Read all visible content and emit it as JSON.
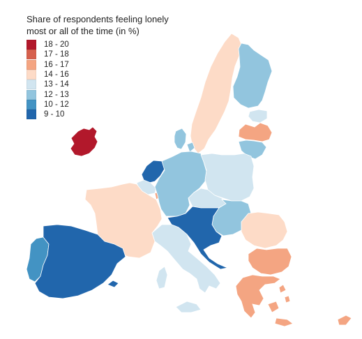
{
  "legend": {
    "title_line1": "Share of respondents feeling lonely",
    "title_line2": "most or all of the time (in %)",
    "items": [
      {
        "label": "18 - 20",
        "color": "#b2182b"
      },
      {
        "label": "17 - 18",
        "color": "#d6604d"
      },
      {
        "label": "16 - 17",
        "color": "#f4a582"
      },
      {
        "label": "14 - 16",
        "color": "#fddbc7"
      },
      {
        "label": "13 - 14",
        "color": "#d1e5f0"
      },
      {
        "label": "12 - 13",
        "color": "#92c5de"
      },
      {
        "label": "10 - 12",
        "color": "#4393c3"
      },
      {
        "label": "9 - 10",
        "color": "#2166ac"
      }
    ]
  },
  "regions": {
    "ireland": "18 - 20",
    "netherlands": "9 - 10",
    "spain": "9 - 10",
    "austria_slovenia_croatia": "9 - 10",
    "portugal": "10 - 12",
    "finland": "12 - 13",
    "germany": "12 - 13",
    "hungary_slovakia": "12 - 13",
    "lithuania": "12 - 13",
    "denmark": "12 - 13",
    "poland": "13 - 14",
    "italy": "13 - 14",
    "czechia": "13 - 14",
    "estonia": "13 - 14",
    "belgium": "13 - 14",
    "sweden": "14 - 16",
    "france": "14 - 16",
    "romania": "14 - 16",
    "latvia": "16 - 17",
    "bulgaria": "16 - 17",
    "greece": "16 - 17",
    "cyprus": "16 - 17",
    "luxembourg": "16 - 17"
  }
}
